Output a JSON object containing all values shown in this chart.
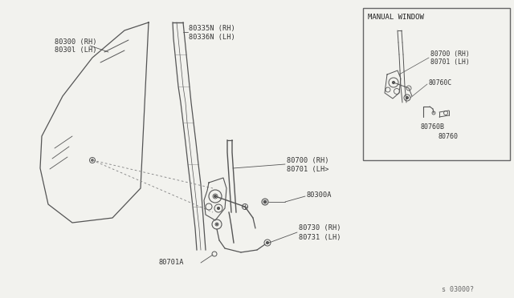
{
  "bg_color": "#f2f2ee",
  "line_color": "#555555",
  "text_color": "#333333",
  "diagram_number": "s 03000?",
  "parts": {
    "glass_label1": "80300 (RH)",
    "glass_label2": "8030l (LH)",
    "sash_label1": "80335N (RH)",
    "sash_label2": "80336N (LH)",
    "regulator_label1": "80700 (RH)",
    "regulator_label2": "80701 (LH>",
    "spacer_label": "80300A",
    "handle_label1": "80730 (RH)",
    "handle_label2": "80731 (LH)",
    "lower_label": "80701A",
    "inset_title": "MANUAL WINDOW",
    "inset_reg1": "80700 (RH)",
    "inset_reg2": "80701 (LH)",
    "inset_c": "80760C",
    "inset_b": "80760B",
    "inset_main": "80760"
  }
}
